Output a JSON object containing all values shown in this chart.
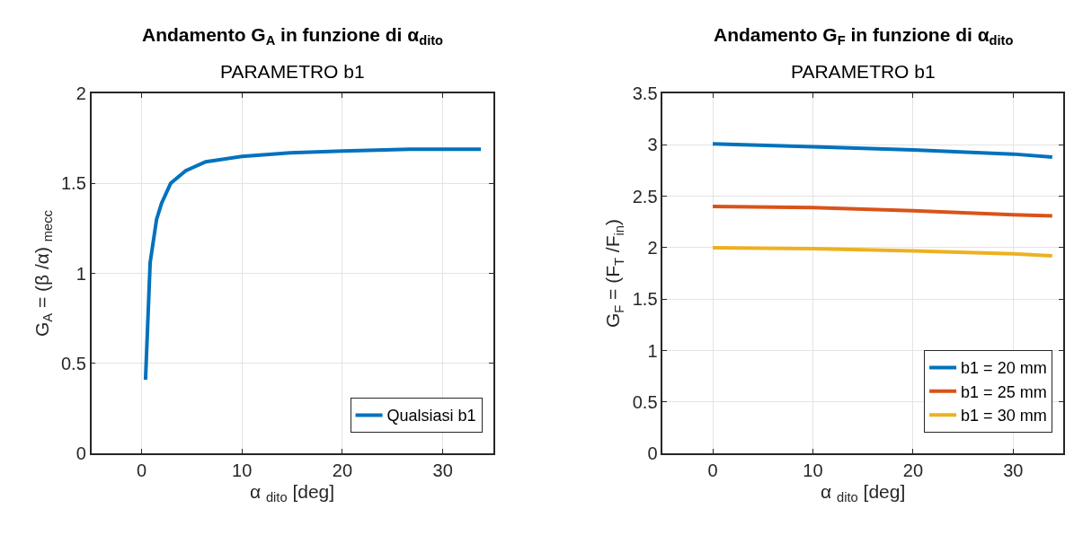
{
  "chart_data": [
    {
      "type": "line",
      "title": "Andamento G$_{A}$ in funzione di α$_{dito}$",
      "subtitle": "PARAMETRO b1",
      "xlabel": "α $_{dito}$ [deg]",
      "ylabel": "G$_{A}$ = (β /α) $_{mecc}$",
      "x": [
        0.4,
        0.86,
        1.5,
        2.0,
        2.9,
        4.4,
        6.4,
        10,
        14.8,
        20,
        26.7,
        33.8
      ],
      "series": [
        {
          "name": "Qualsiasi b1",
          "color": "#0072bd",
          "values": [
            0.41,
            1.06,
            1.3,
            1.39,
            1.5,
            1.57,
            1.62,
            1.65,
            1.67,
            1.68,
            1.69,
            1.69
          ]
        }
      ],
      "xlim": [
        -5,
        35
      ],
      "xticks": [
        0,
        10,
        20,
        30
      ],
      "ylim": [
        0,
        2
      ],
      "yticks": [
        0,
        0.5,
        1,
        1.5,
        2
      ],
      "grid": true,
      "legend": "bottom right",
      "line_style": "solid"
    },
    {
      "type": "line",
      "title": "Andamento G$_{F}$ in funzione di α$_{dito}$",
      "subtitle": "PARAMETRO b1",
      "xlabel": "α $_{dito}$ [deg]",
      "ylabel": "G$_{F}$ = (F$_{T}$ /F$_{in}$)",
      "x": [
        0,
        10,
        20,
        30,
        33.9
      ],
      "series": [
        {
          "name": "b1 = 20 mm",
          "color": "#0072bd",
          "values": [
            3.01,
            2.98,
            2.95,
            2.91,
            2.88
          ]
        },
        {
          "name": "b1 = 25 mm",
          "color": "#d95319",
          "values": [
            2.4,
            2.39,
            2.36,
            2.32,
            2.31
          ]
        },
        {
          "name": "b1 = 30 mm",
          "color": "#edb120",
          "values": [
            2.0,
            1.99,
            1.97,
            1.94,
            1.92
          ]
        }
      ],
      "xlim": [
        -5,
        35
      ],
      "xticks": [
        0,
        10,
        20,
        30
      ],
      "ylim": [
        0,
        3.5
      ],
      "yticks": [
        0,
        0.5,
        1,
        1.5,
        2,
        2.5,
        3,
        3.5
      ],
      "grid": true,
      "legend": "bottom right",
      "line_style": "solid"
    }
  ]
}
